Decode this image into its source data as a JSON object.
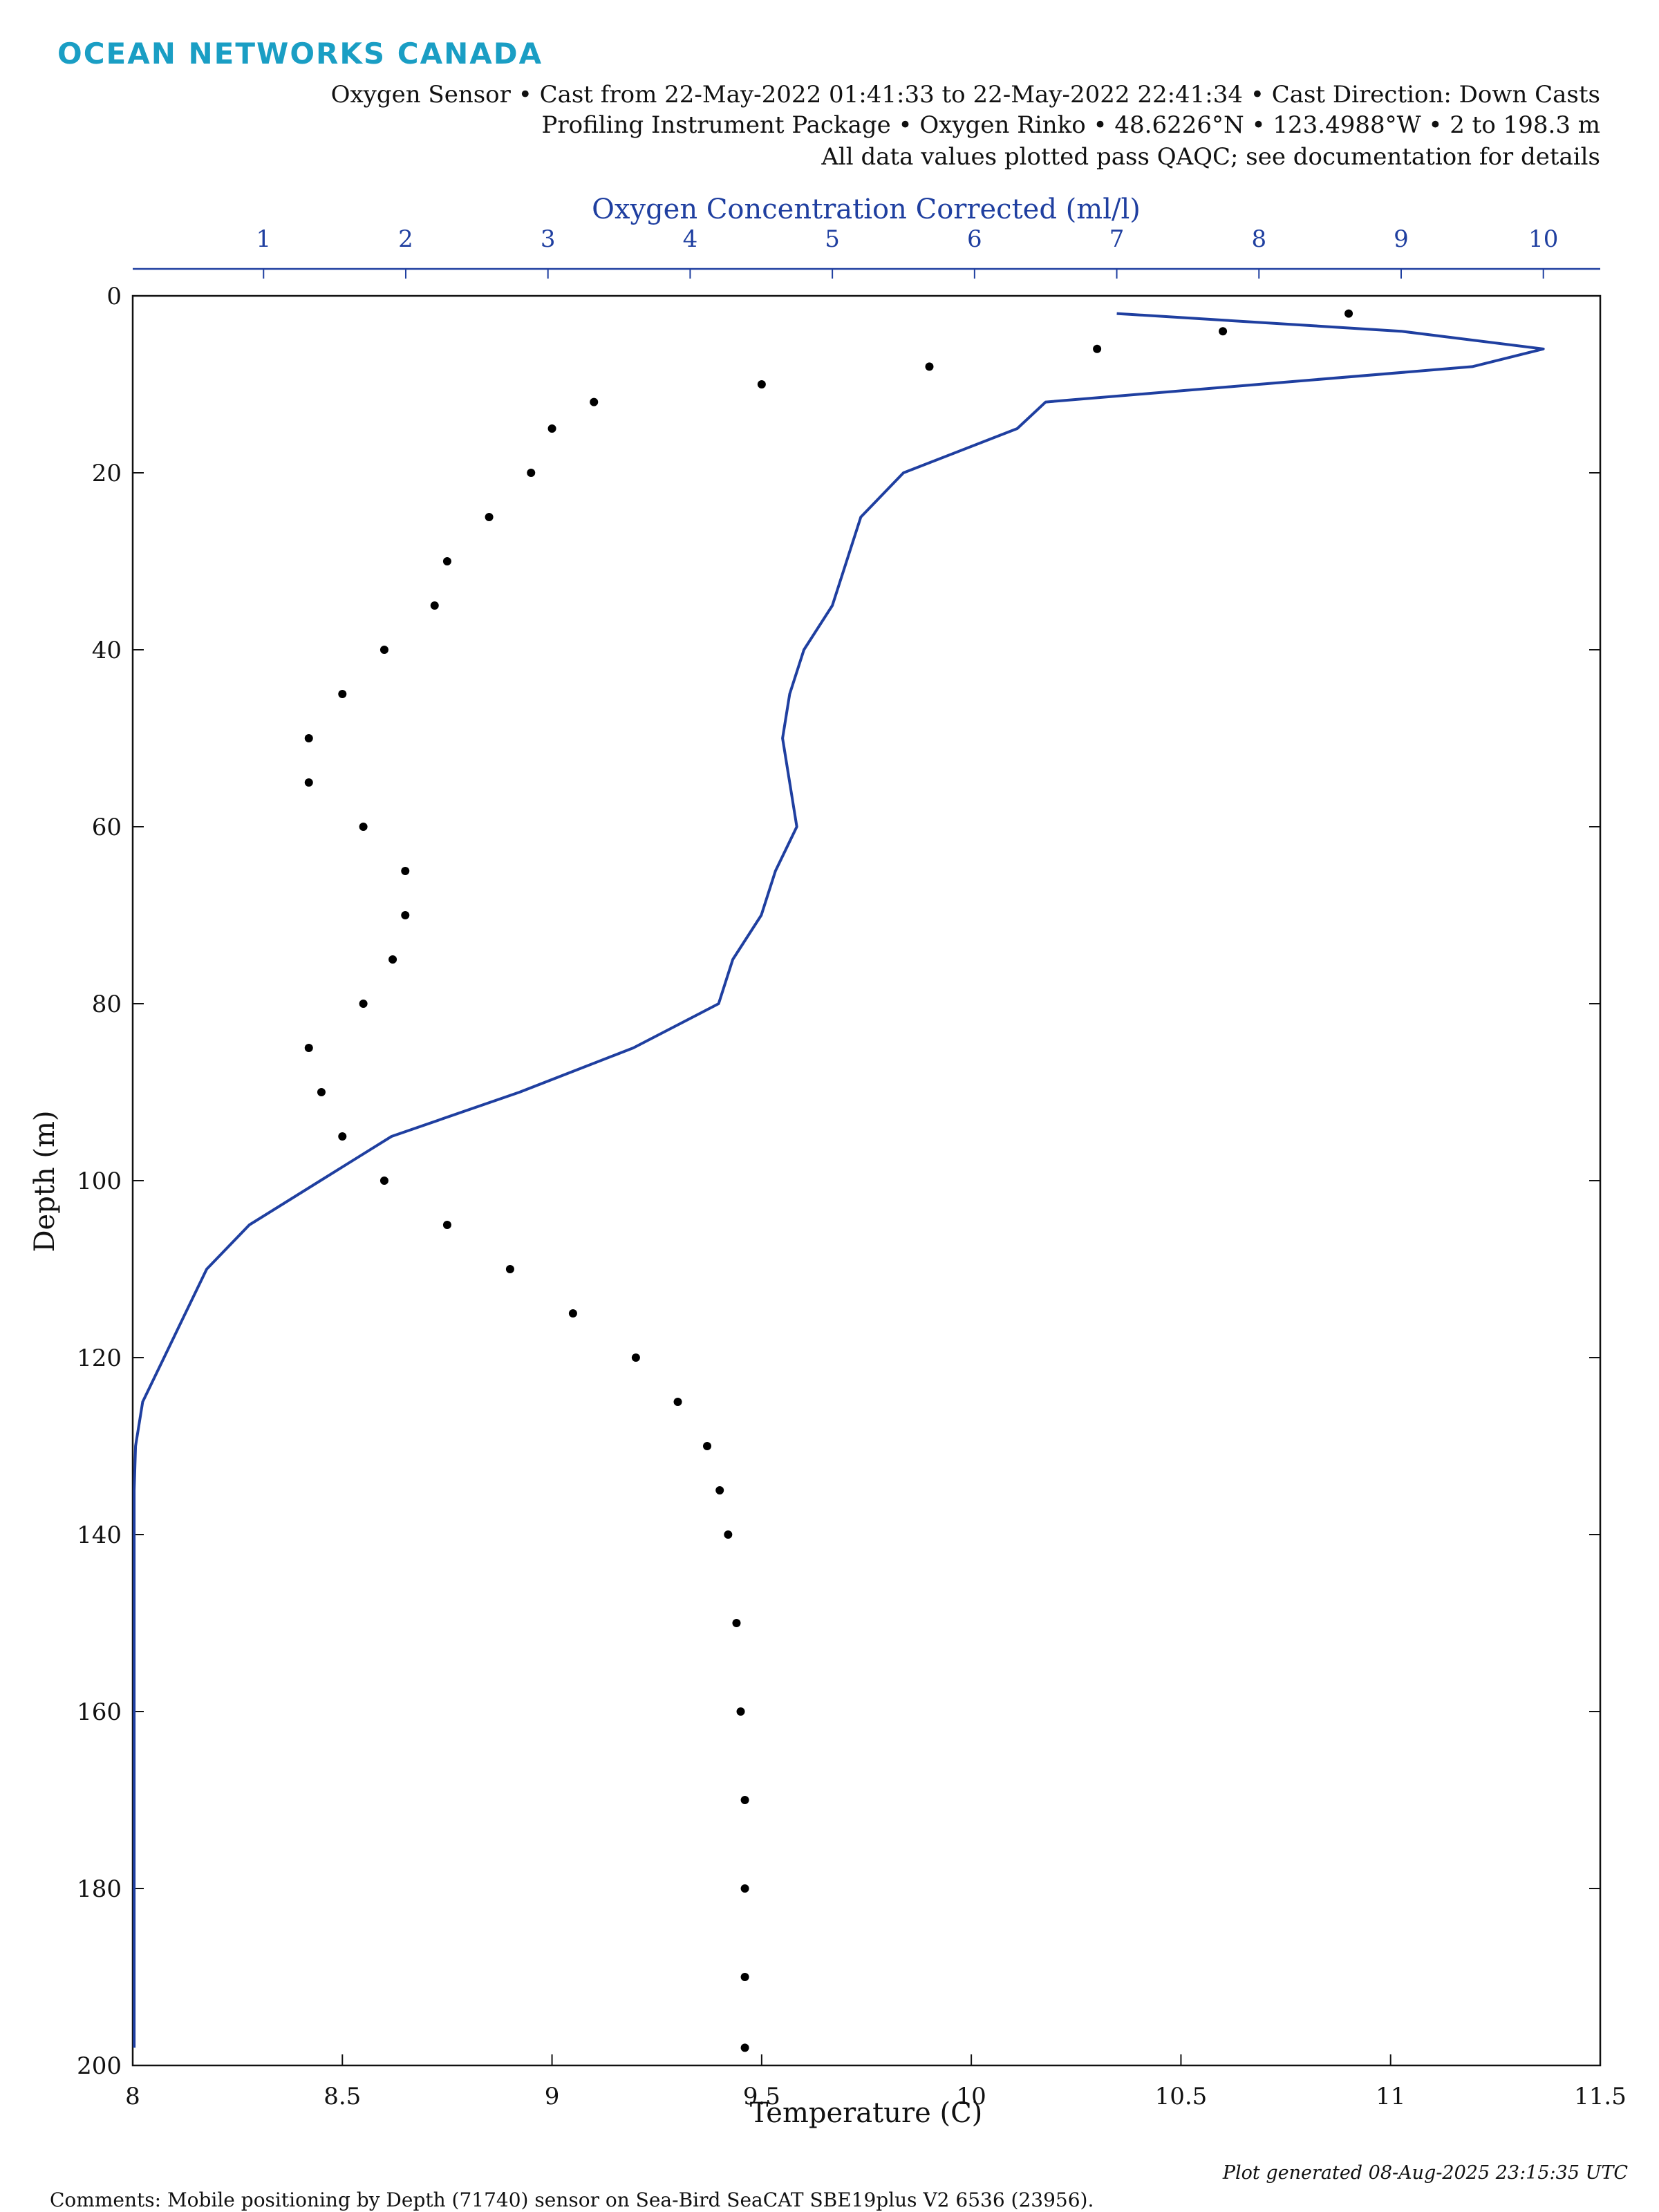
{
  "header": {
    "logo": "OCEAN NETWORKS CANADA",
    "lines": [
      "Oxygen Sensor • Cast from 22-May-2022 01:41:33 to 22-May-2022 22:41:34 • Cast Direction: Down Casts",
      "Profiling Instrument Package • Oxygen Rinko • 48.6226°N • 123.4988°W • 2 to 198.3 m",
      "All data values plotted pass QAQC; see documentation for details"
    ]
  },
  "chart_data": {
    "type": "profile",
    "xlabel": "Temperature (C)",
    "x2label": "Oxygen Concentration Corrected (ml/l)",
    "ylabel": "Depth (m)",
    "xlim": [
      8,
      11.5
    ],
    "xticks": [
      8,
      8.5,
      9,
      9.5,
      10,
      10.5,
      11,
      11.5
    ],
    "x2lim": [
      0.08,
      10.4
    ],
    "x2ticks": [
      1,
      2,
      3,
      4,
      5,
      6,
      7,
      8,
      9,
      10
    ],
    "ylim": [
      0,
      200
    ],
    "y_inverted": true,
    "yticks": [
      0,
      20,
      40,
      60,
      80,
      100,
      120,
      140,
      160,
      180,
      200
    ],
    "depths": [
      2,
      4,
      6,
      8,
      10,
      12,
      15,
      20,
      25,
      30,
      35,
      40,
      45,
      50,
      55,
      60,
      65,
      70,
      75,
      80,
      85,
      90,
      95,
      100,
      105,
      110,
      115,
      120,
      125,
      130,
      135,
      140,
      150,
      160,
      170,
      180,
      190,
      198
    ],
    "series": [
      {
        "color": "#000000",
        "axis": "x",
        "marker": "dot",
        "values": [
          10.9,
          10.6,
          10.3,
          9.9,
          9.5,
          9.1,
          9.0,
          8.95,
          8.85,
          8.75,
          8.72,
          8.6,
          8.5,
          8.42,
          8.42,
          8.55,
          8.65,
          8.65,
          8.62,
          8.55,
          8.42,
          8.45,
          8.5,
          8.6,
          8.75,
          8.9,
          9.05,
          9.2,
          9.3,
          9.37,
          9.4,
          9.42,
          9.44,
          9.45,
          9.46,
          9.46,
          9.46,
          9.46
        ]
      },
      {
        "color": "#1f3fa0",
        "axis": "x2",
        "marker": "line",
        "values": [
          7.0,
          9.0,
          10.0,
          9.5,
          8.0,
          6.5,
          6.3,
          5.5,
          5.2,
          5.1,
          5.0,
          4.8,
          4.7,
          4.65,
          4.7,
          4.75,
          4.6,
          4.5,
          4.3,
          4.2,
          3.6,
          2.8,
          1.9,
          1.4,
          0.9,
          0.6,
          0.45,
          0.3,
          0.15,
          0.1,
          0.09,
          0.09,
          0.09,
          0.09,
          0.09,
          0.09,
          0.09,
          0.09
        ]
      }
    ]
  },
  "footer": {
    "comments": "Comments: Mobile positioning by Depth (71740) sensor on Sea-Bird SeaCAT SBE19plus V2 6536 (23956).",
    "generated": "Plot generated 08-Aug-2025 23:15:35 UTC"
  }
}
